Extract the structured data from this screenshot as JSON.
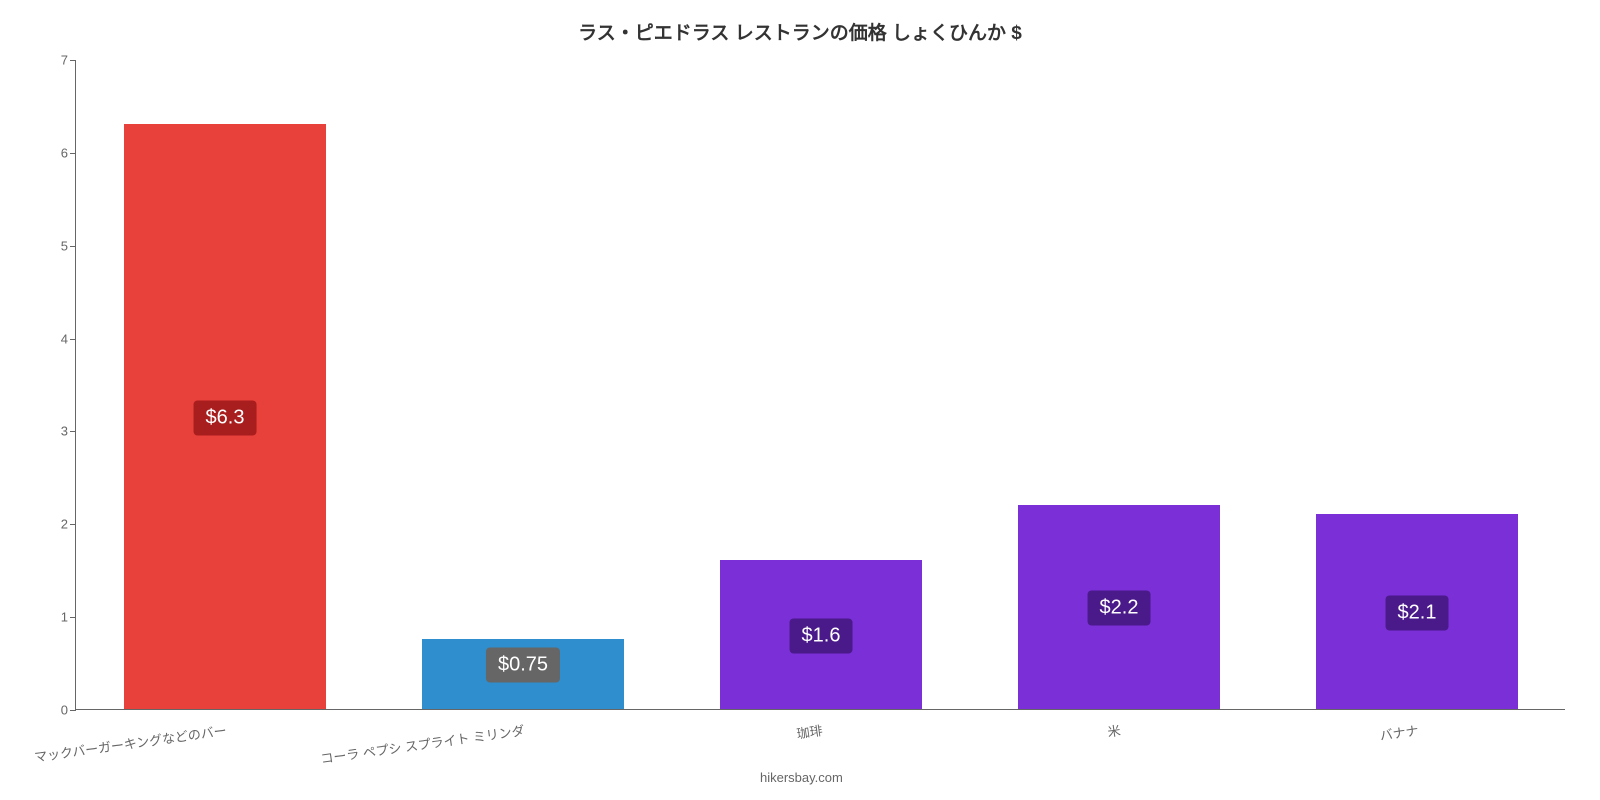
{
  "chart": {
    "type": "bar",
    "title": "ラス・ピエドラス レストランの価格 しょくひんか $",
    "title_fontsize": 19,
    "title_color": "#333333",
    "background_color": "#ffffff",
    "axis_color": "#666666",
    "ylim": [
      0,
      7
    ],
    "ytick_step": 1,
    "ytick_fontsize": 13,
    "ytick_color": "#666666",
    "xlabel_fontsize": 13,
    "xlabel_color": "#666666",
    "xlabel_rotate_deg": -8,
    "bar_width_ratio": 0.68,
    "categories": [
      "マックバーガーキングなどのバー",
      "コーラ ペプシ スプライト ミリンダ",
      "珈琲",
      "米",
      "バナナ"
    ],
    "values": [
      6.3,
      0.75,
      1.6,
      2.2,
      2.1
    ],
    "value_labels": [
      "$6.3",
      "$0.75",
      "$1.6",
      "$2.2",
      "$2.1"
    ],
    "bar_colors": [
      "#e8403a",
      "#2e8ece",
      "#7b2fd6",
      "#7b2fd6",
      "#7b2fd6"
    ],
    "label_bg_colors": [
      "#a81d1d",
      "#666666",
      "#4a1a8a",
      "#4a1a8a",
      "#4a1a8a"
    ],
    "label_text_color": "#ffffff",
    "label_fontsize": 20,
    "attribution": "hikersbay.com"
  }
}
